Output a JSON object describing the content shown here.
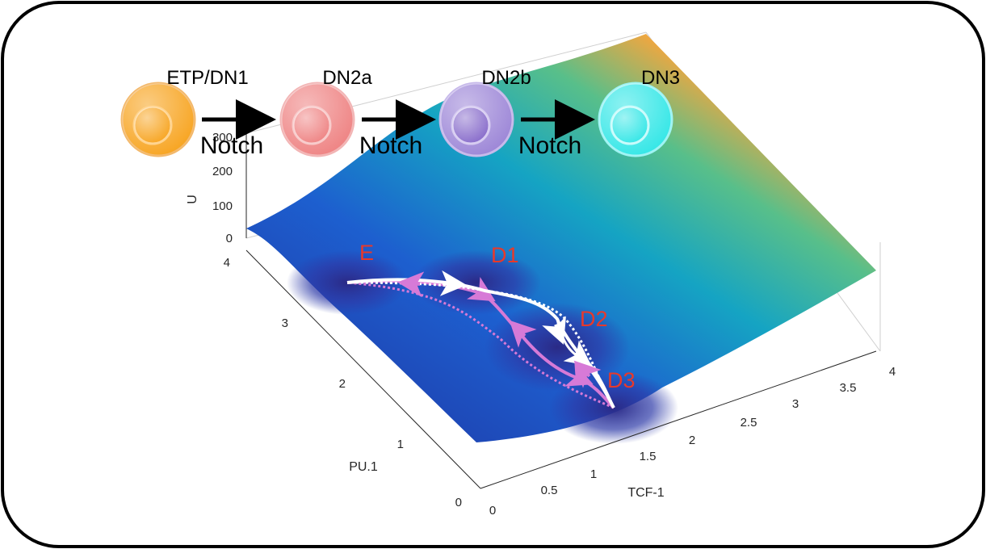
{
  "colors": {
    "frame": "#000000",
    "surface_low": "#1f2a9a",
    "surface_mid": "#1a9fc0",
    "surface_high": "#f9f20c",
    "state_label": "#e8392a",
    "path_white": "#ffffff",
    "path_pink": "#d77ad7"
  },
  "cells": [
    {
      "name": "ETP/DN1",
      "color": "#f7a21b",
      "edge": "#f3b86a"
    },
    {
      "name": "DN2a",
      "color": "#ee8080",
      "edge": "#f2b4b4"
    },
    {
      "name": "DN2b",
      "color": "#9a83d6",
      "edge": "#c6b8ea"
    },
    {
      "name": "DN3",
      "color": "#2fe6e6",
      "edge": "#9df3f3"
    }
  ],
  "arrows": [
    "Notch",
    "Notch",
    "Notch"
  ],
  "states": [
    "E",
    "D1",
    "D2",
    "D3"
  ],
  "axes": {
    "z_title": "U",
    "z_ticks": [
      "0",
      "100",
      "200",
      "300"
    ],
    "pu1_title": "PU.1",
    "pu1_ticks": [
      "0",
      "1",
      "2",
      "3",
      "4"
    ],
    "tcf1_title": "TCF-1",
    "tcf1_ticks": [
      "0",
      "0.5",
      "1",
      "1.5",
      "2",
      "2.5",
      "3",
      "3.5",
      "4"
    ]
  }
}
